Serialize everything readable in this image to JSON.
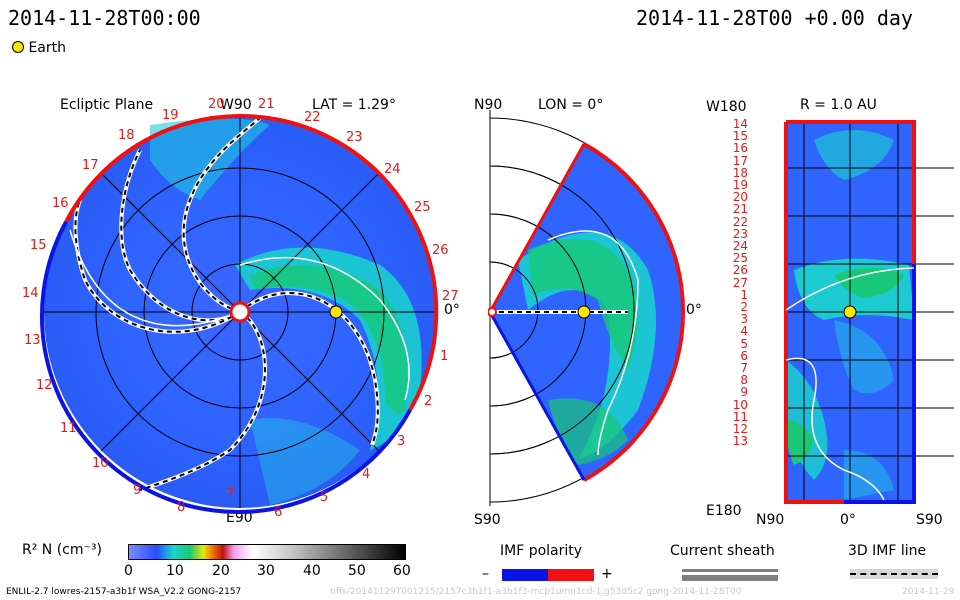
{
  "header": {
    "timestamp": "2014-11-28T00:00",
    "offset": "2014-11-28T00 +0.00 day",
    "earth_label": "Earth"
  },
  "ecliptic": {
    "title": "Ecliptic Plane",
    "lat": "LAT = 1.29°",
    "w90": "W90",
    "e90": "E90",
    "zero": "0°",
    "numbers": [
      "19",
      "20",
      "21",
      "22",
      "23",
      "24",
      "25",
      "26",
      "27",
      "1",
      "2",
      "3",
      "4",
      "5",
      "6",
      "7",
      "8",
      "9",
      "10",
      "11",
      "12",
      "13",
      "14",
      "15",
      "16",
      "17",
      "18"
    ]
  },
  "meridional": {
    "n90": "N90",
    "lon": "LON = 0°",
    "s90": "S90",
    "zero": "0°"
  },
  "map": {
    "w180": "W180",
    "r": "R = 1.0 AU",
    "e180": "E180",
    "n90": "N90",
    "zero": "0°",
    "s90": "S90",
    "rows": [
      "14",
      "15",
      "16",
      "17",
      "18",
      "19",
      "20",
      "21",
      "22",
      "23",
      "24",
      "25",
      "26",
      "27",
      "1",
      "2",
      "3",
      "4",
      "5",
      "6",
      "7",
      "8",
      "9",
      "10",
      "11",
      "12",
      "13"
    ]
  },
  "colorbar": {
    "label": "R² N (cm⁻³)",
    "ticks": [
      "0",
      "10",
      "20",
      "30",
      "40",
      "50",
      "60"
    ]
  },
  "legend": {
    "imf_title": "IMF polarity",
    "minus": "–",
    "plus": "+",
    "sheath_title": "Current sheath",
    "imf3d_title": "3D IMF line",
    "negative_color": "#0a14e6",
    "positive_color": "#f01010"
  },
  "footer": {
    "model": "ENLIL-2.7 lowres-2157-a3b1f WSA_V2.2 GONG-2157",
    "run": "tiffs/20141129T001215/2157c3b1f1-a3b1f3-mcp1umn1cd-1.g53d5c2 gong-2014-11-28T00",
    "date": "2014-11-29"
  }
}
